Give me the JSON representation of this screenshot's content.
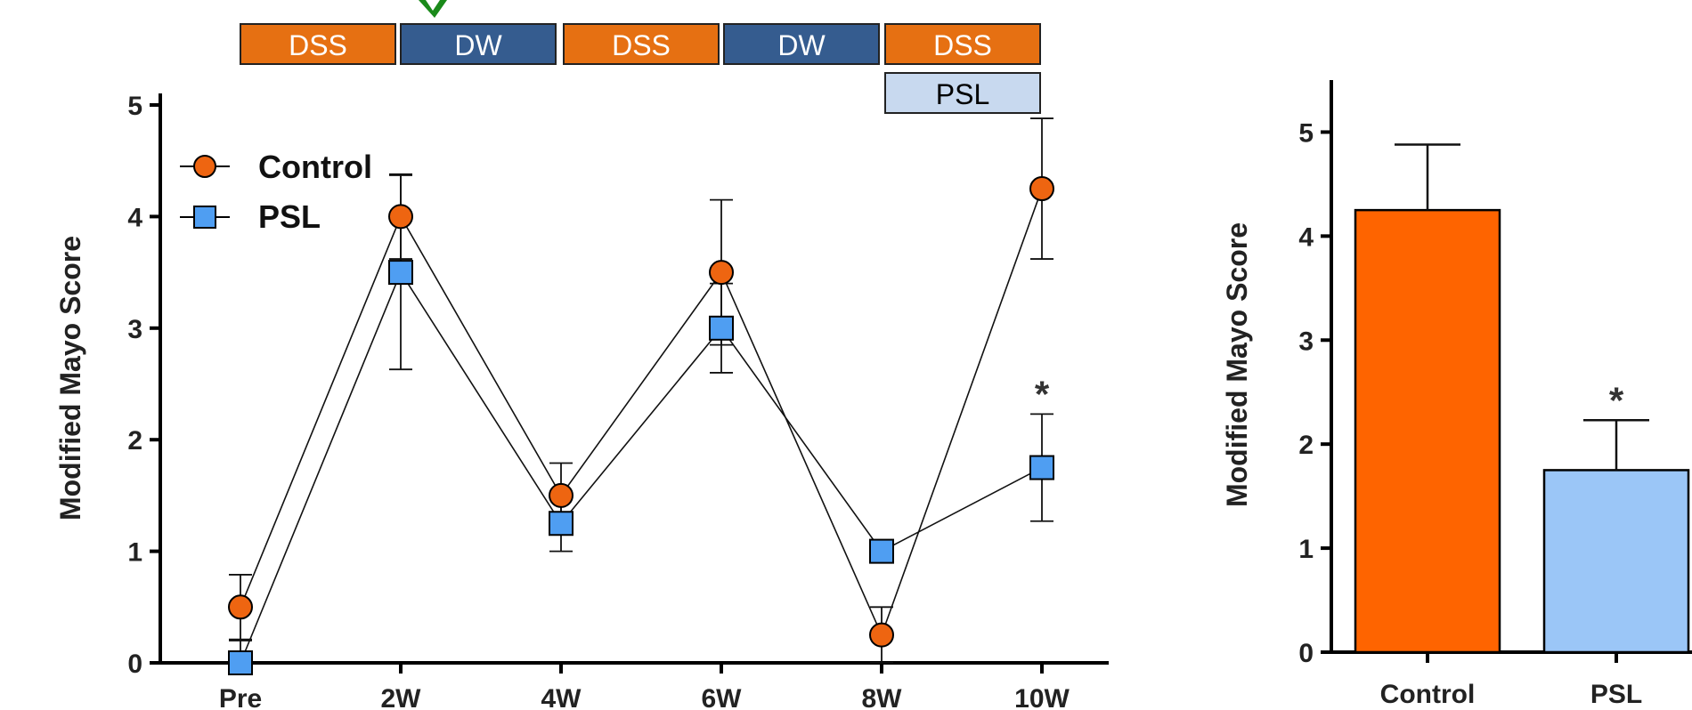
{
  "colors": {
    "control": "#ee6511",
    "psl": "#4f9ef2",
    "dss_box": "#e67012",
    "dw_box": "#355c8f",
    "psl_box": "#c8d9ef",
    "bar_control": "#fe6400",
    "bar_psl": "#9bc6f7"
  },
  "timeline": {
    "phases": [
      "DSS",
      "DW",
      "DSS",
      "DW",
      "DSS"
    ],
    "treatment_label": "PSL"
  },
  "chart_data": [
    {
      "type": "line",
      "ylabel": "Modified Mayo Score",
      "xlabel": "",
      "ylim": [
        0,
        5
      ],
      "yticks": [
        "0",
        "1",
        "2",
        "3",
        "4",
        "5"
      ],
      "categories": [
        "Pre",
        "2W",
        "4W",
        "6W",
        "8W",
        "10W"
      ],
      "legend_position": "top-left",
      "series": [
        {
          "name": "Control",
          "marker": "circle",
          "values": [
            0.5,
            4.0,
            1.5,
            3.5,
            0.25,
            4.25
          ],
          "error": [
            0.29,
            0.38,
            0.29,
            0.65,
            0.25,
            0.63
          ]
        },
        {
          "name": "PSL",
          "marker": "square",
          "values": [
            0.0,
            3.5,
            1.25,
            3.0,
            1.0,
            1.75
          ],
          "error": [
            0.2,
            0.87,
            0.25,
            0.4,
            0.0,
            0.48
          ]
        }
      ],
      "annotations": [
        {
          "category": "10W",
          "text": "*"
        }
      ]
    },
    {
      "type": "bar",
      "ylabel": "Modified Mayo Score",
      "xlabel": "",
      "ylim": [
        0,
        5.5
      ],
      "yticks": [
        "0",
        "1",
        "2",
        "3",
        "4",
        "5"
      ],
      "categories": [
        "Control",
        "PSL"
      ],
      "values": [
        4.25,
        1.75
      ],
      "error": [
        0.63,
        0.48
      ],
      "annotations": [
        {
          "category": "PSL",
          "text": "*"
        }
      ]
    }
  ]
}
